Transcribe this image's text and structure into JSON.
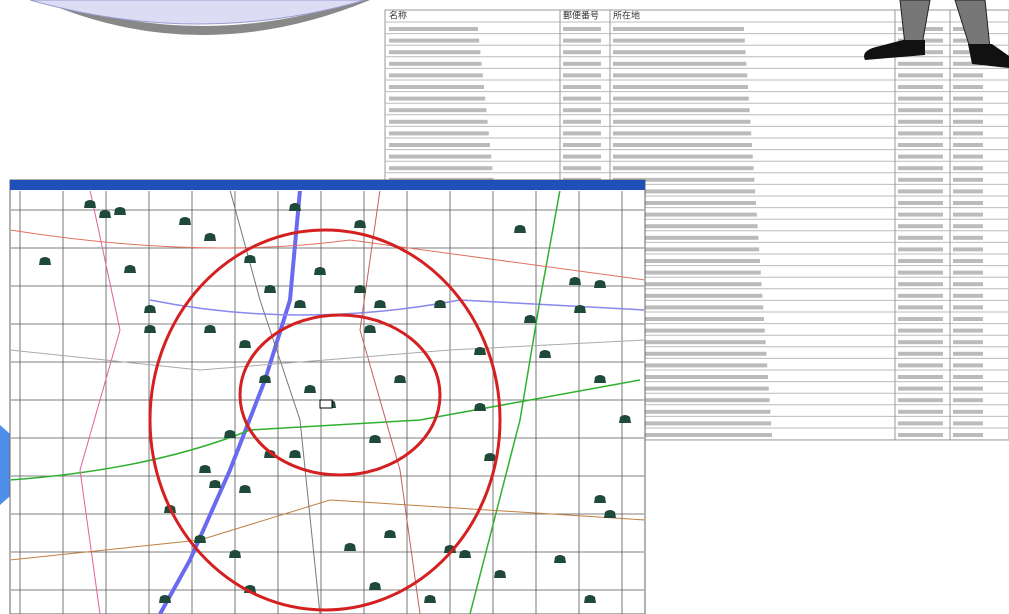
{
  "table": {
    "headers": [
      "名称",
      "郵便番号",
      "所在地"
    ]
  }
}
